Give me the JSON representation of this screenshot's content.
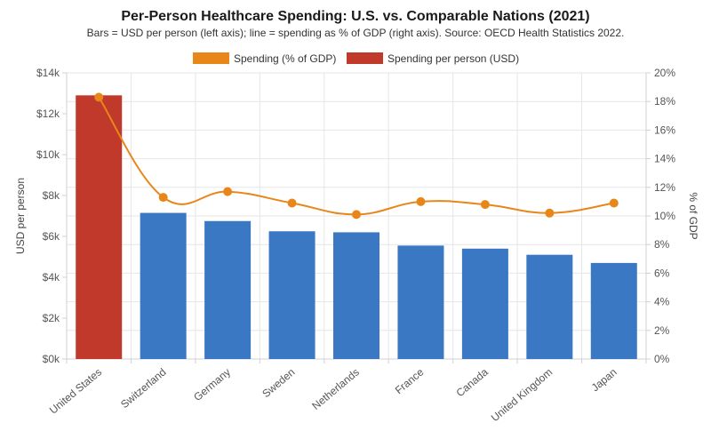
{
  "chart_data": {
    "type": "bar+line",
    "title": "Per-Person Healthcare Spending: U.S. vs. Comparable Nations (2021)",
    "subtitle": "Bars = USD per person (left axis); line = spending as % of GDP (right axis). Source: OECD Health Statistics 2022.",
    "categories": [
      "United States",
      "Switzerland",
      "Germany",
      "Sweden",
      "Netherlands",
      "France",
      "Canada",
      "United Kingdom",
      "Japan"
    ],
    "series": [
      {
        "name": "Spending (% of GDP)",
        "type": "line",
        "axis": "right",
        "color": "#e8861a",
        "values": [
          18.3,
          11.3,
          11.7,
          10.9,
          10.1,
          11.0,
          10.8,
          10.2,
          10.9
        ]
      },
      {
        "name": "Spending per person (USD)",
        "type": "bar",
        "axis": "left",
        "color": "#c0392b",
        "other_color": "#3b78c3",
        "values": [
          12900,
          7150,
          6750,
          6250,
          6200,
          5550,
          5400,
          5100,
          4700
        ]
      }
    ],
    "ylabel": "USD per person",
    "y2label": "% of GDP",
    "ylim": [
      0,
      14000
    ],
    "yticks": [
      "$0k",
      "$2k",
      "$4k",
      "$6k",
      "$8k",
      "$10k",
      "$12k",
      "$14k"
    ],
    "y2lim": [
      0,
      20
    ],
    "y2ticks": [
      "0%",
      "2%",
      "4%",
      "6%",
      "8%",
      "10%",
      "12%",
      "14%",
      "16%",
      "18%",
      "20%"
    ],
    "legend_position": "top-center",
    "grid": true
  }
}
